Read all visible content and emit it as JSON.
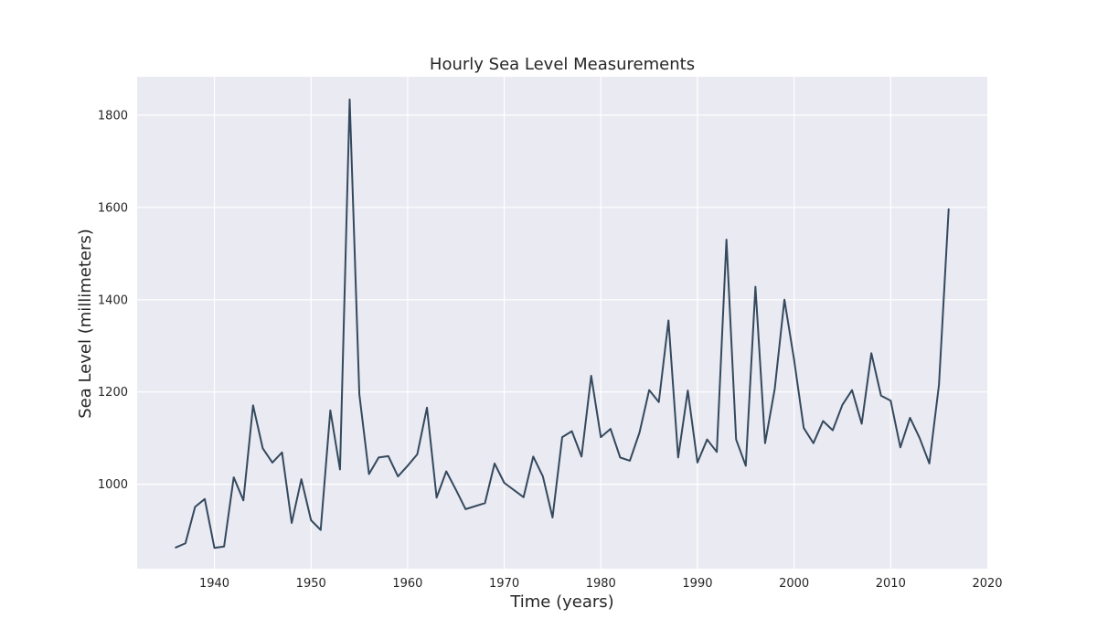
{
  "chart_data": {
    "type": "line",
    "title": "Hourly Sea Level Measurements",
    "xlabel": "Time (years)",
    "ylabel": "Sea Level (millimeters)",
    "xlim": [
      1932,
      2020
    ],
    "ylim": [
      817,
      1883
    ],
    "xticks": [
      1940,
      1950,
      1960,
      1970,
      1980,
      1990,
      2000,
      2010,
      2020
    ],
    "yticks": [
      1000,
      1200,
      1400,
      1600,
      1800
    ],
    "grid": true,
    "background_color": "#EAEAF2",
    "grid_color": "#FFFFFF",
    "line_color": "#34495E",
    "series": [
      {
        "x": [
          1936,
          1937,
          1938,
          1939,
          1940,
          1941,
          1942,
          1943,
          1944,
          1945,
          1946,
          1947,
          1948,
          1949,
          1950,
          1951,
          1952,
          1953,
          1954,
          1955,
          1956,
          1957,
          1958,
          1959,
          1960,
          1961,
          1962,
          1963,
          1964,
          1965,
          1966,
          1968,
          1969,
          1970,
          1972,
          1973,
          1974,
          1975,
          1976,
          1977,
          1978,
          1979,
          1980,
          1981,
          1982,
          1983,
          1984,
          1985,
          1986,
          1987,
          1988,
          1989,
          1990,
          1991,
          1992,
          1993,
          1994,
          1995,
          1996,
          1997,
          1998,
          1999,
          2000,
          2001,
          2002,
          2003,
          2004,
          2005,
          2006,
          2007,
          2008,
          2009,
          2010,
          2011,
          2012,
          2013,
          2014,
          2015,
          2016
        ],
        "values": [
          863,
          872,
          951,
          968,
          862,
          865,
          1015,
          965,
          1171,
          1078,
          1047,
          1069,
          916,
          1011,
          922,
          901,
          1160,
          1032,
          1834,
          1195,
          1022,
          1058,
          1061,
          1017,
          1040,
          1065,
          1166,
          971,
          1028,
          988,
          946,
          959,
          1045,
          1003,
          972,
          1060,
          1017,
          928,
          1102,
          1115,
          1060,
          1235,
          1102,
          1120,
          1058,
          1051,
          1112,
          1204,
          1178,
          1355,
          1058,
          1203,
          1047,
          1097,
          1070,
          1530,
          1097,
          1040,
          1428,
          1089,
          1207,
          1400,
          1270,
          1122,
          1089,
          1137,
          1117,
          1172,
          1204,
          1131,
          1284,
          1192,
          1181,
          1080,
          1144,
          1100,
          1045,
          1216,
          1596
        ]
      }
    ]
  }
}
